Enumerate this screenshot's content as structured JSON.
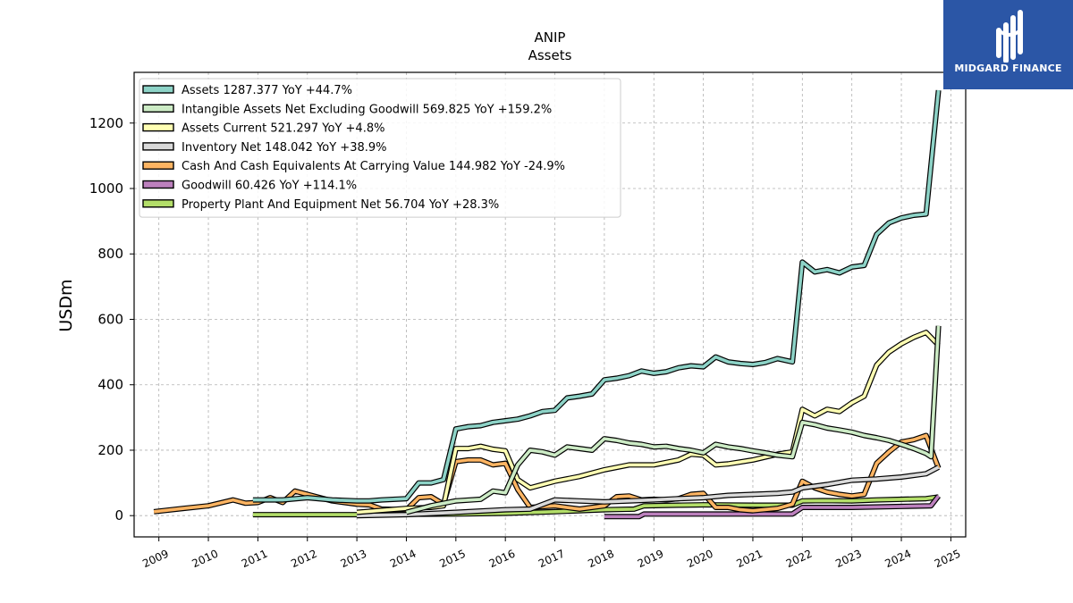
{
  "chart_data": {
    "type": "line",
    "title": "ANIP",
    "subtitle": "Assets",
    "ylabel": "USDm",
    "xlabel": "",
    "xlim": [
      2008.5,
      2025.3
    ],
    "ylim": [
      -65,
      1355
    ],
    "yticks": [
      0,
      200,
      400,
      600,
      800,
      1000,
      1200
    ],
    "xticks": [
      2009,
      2010,
      2011,
      2012,
      2013,
      2014,
      2015,
      2016,
      2017,
      2018,
      2019,
      2020,
      2021,
      2022,
      2023,
      2024,
      2025
    ],
    "grid": true,
    "legend_position": "upper-left",
    "series": [
      {
        "name": "Property Plant And Equipment Net",
        "legend": "Property Plant And Equipment Net  56.704 YoY +28.3%",
        "color": "#b3de69",
        "points": [
          [
            2010.9,
            3
          ],
          [
            2012,
            3
          ],
          [
            2013,
            3
          ],
          [
            2014,
            4
          ],
          [
            2015,
            5
          ],
          [
            2016,
            7
          ],
          [
            2017,
            12
          ],
          [
            2018,
            18
          ],
          [
            2018.6,
            20
          ],
          [
            2018.8,
            30
          ],
          [
            2019.5,
            32
          ],
          [
            2020,
            33
          ],
          [
            2021,
            32
          ],
          [
            2021.8,
            32
          ],
          [
            2022,
            45
          ],
          [
            2022.4,
            46
          ],
          [
            2023,
            45
          ],
          [
            2023.5,
            48
          ],
          [
            2024,
            50
          ],
          [
            2024.5,
            52
          ],
          [
            2024.75,
            57
          ]
        ]
      },
      {
        "name": "Goodwill",
        "legend": "Goodwill  60.426 YoY +114.1%",
        "color": "#bc80bd",
        "points": [
          [
            2018,
            -3
          ],
          [
            2018.7,
            -3
          ],
          [
            2018.8,
            5
          ],
          [
            2020,
            5
          ],
          [
            2021,
            5
          ],
          [
            2021.8,
            5
          ],
          [
            2022,
            25
          ],
          [
            2023,
            25
          ],
          [
            2024,
            28
          ],
          [
            2024.6,
            30
          ],
          [
            2024.75,
            60
          ]
        ]
      },
      {
        "name": "Cash And Cash Equivalents At Carrying Value",
        "legend": "Cash And Cash Equivalents At Carrying Value  144.982 YoY -24.9%",
        "color": "#fdb462",
        "points": [
          [
            2008.9,
            12
          ],
          [
            2009.5,
            22
          ],
          [
            2010,
            30
          ],
          [
            2010.5,
            48
          ],
          [
            2010.75,
            38
          ],
          [
            2011,
            40
          ],
          [
            2011.25,
            55
          ],
          [
            2011.5,
            40
          ],
          [
            2011.75,
            75
          ],
          [
            2012,
            65
          ],
          [
            2012.5,
            45
          ],
          [
            2013,
            35
          ],
          [
            2013.25,
            33
          ],
          [
            2013.5,
            20
          ],
          [
            2014,
            18
          ],
          [
            2014.25,
            55
          ],
          [
            2014.5,
            58
          ],
          [
            2014.75,
            35
          ],
          [
            2015,
            165
          ],
          [
            2015.25,
            170
          ],
          [
            2015.5,
            170
          ],
          [
            2015.75,
            155
          ],
          [
            2016,
            160
          ],
          [
            2016.25,
            80
          ],
          [
            2016.5,
            25
          ],
          [
            2017,
            30
          ],
          [
            2017.5,
            20
          ],
          [
            2018,
            30
          ],
          [
            2018.25,
            58
          ],
          [
            2018.5,
            60
          ],
          [
            2018.75,
            48
          ],
          [
            2019,
            50
          ],
          [
            2019.25,
            48
          ],
          [
            2019.5,
            52
          ],
          [
            2019.75,
            65
          ],
          [
            2020,
            68
          ],
          [
            2020.25,
            25
          ],
          [
            2020.5,
            25
          ],
          [
            2020.75,
            18
          ],
          [
            2021,
            15
          ],
          [
            2021.5,
            22
          ],
          [
            2021.8,
            35
          ],
          [
            2022,
            105
          ],
          [
            2022.25,
            85
          ],
          [
            2022.5,
            72
          ],
          [
            2022.75,
            65
          ],
          [
            2023,
            60
          ],
          [
            2023.25,
            65
          ],
          [
            2023.5,
            160
          ],
          [
            2023.75,
            195
          ],
          [
            2024,
            225
          ],
          [
            2024.25,
            232
          ],
          [
            2024.5,
            245
          ],
          [
            2024.75,
            145
          ]
        ]
      },
      {
        "name": "Inventory Net",
        "legend": "Inventory Net  148.042 YoY +38.9%",
        "color": "#d9d9d9",
        "points": [
          [
            2013,
            0
          ],
          [
            2014,
            3
          ],
          [
            2015,
            10
          ],
          [
            2016,
            18
          ],
          [
            2016.5,
            20
          ],
          [
            2017,
            48
          ],
          [
            2017.5,
            45
          ],
          [
            2018,
            42
          ],
          [
            2018.5,
            45
          ],
          [
            2019,
            48
          ],
          [
            2019.5,
            52
          ],
          [
            2020,
            55
          ],
          [
            2020.5,
            62
          ],
          [
            2021,
            65
          ],
          [
            2021.5,
            68
          ],
          [
            2021.8,
            72
          ],
          [
            2022,
            85
          ],
          [
            2022.5,
            95
          ],
          [
            2023,
            108
          ],
          [
            2023.5,
            112
          ],
          [
            2024,
            118
          ],
          [
            2024.5,
            128
          ],
          [
            2024.75,
            148
          ]
        ]
      },
      {
        "name": "Assets Current",
        "legend": "Assets Current  521.297 YoY +4.8%",
        "color": "#ffffb3",
        "points": [
          [
            2013,
            10
          ],
          [
            2014,
            22
          ],
          [
            2014.5,
            25
          ],
          [
            2014.75,
            30
          ],
          [
            2015,
            205
          ],
          [
            2015.25,
            205
          ],
          [
            2015.5,
            212
          ],
          [
            2015.75,
            203
          ],
          [
            2016,
            198
          ],
          [
            2016.25,
            110
          ],
          [
            2016.5,
            85
          ],
          [
            2017,
            105
          ],
          [
            2017.5,
            120
          ],
          [
            2018,
            140
          ],
          [
            2018.5,
            155
          ],
          [
            2019,
            155
          ],
          [
            2019.5,
            170
          ],
          [
            2019.75,
            188
          ],
          [
            2020,
            185
          ],
          [
            2020.25,
            155
          ],
          [
            2020.5,
            158
          ],
          [
            2021,
            170
          ],
          [
            2021.5,
            188
          ],
          [
            2021.8,
            195
          ],
          [
            2022,
            325
          ],
          [
            2022.25,
            305
          ],
          [
            2022.5,
            325
          ],
          [
            2022.75,
            318
          ],
          [
            2023,
            345
          ],
          [
            2023.25,
            365
          ],
          [
            2023.5,
            460
          ],
          [
            2023.75,
            500
          ],
          [
            2024,
            525
          ],
          [
            2024.25,
            545
          ],
          [
            2024.5,
            560
          ],
          [
            2024.75,
            521
          ]
        ]
      },
      {
        "name": "Intangible Assets Net Excluding Goodwill",
        "legend": "Intangible Assets Net Excluding Goodwill  569.825 YoY +159.2%",
        "color": "#ccebc5",
        "points": [
          [
            2014,
            10
          ],
          [
            2014.5,
            30
          ],
          [
            2015,
            45
          ],
          [
            2015.5,
            50
          ],
          [
            2015.75,
            75
          ],
          [
            2016,
            70
          ],
          [
            2016.25,
            155
          ],
          [
            2016.5,
            200
          ],
          [
            2016.75,
            195
          ],
          [
            2017,
            185
          ],
          [
            2017.25,
            210
          ],
          [
            2017.5,
            205
          ],
          [
            2017.75,
            200
          ],
          [
            2018,
            235
          ],
          [
            2018.25,
            230
          ],
          [
            2018.5,
            222
          ],
          [
            2018.75,
            218
          ],
          [
            2019,
            210
          ],
          [
            2019.25,
            212
          ],
          [
            2019.5,
            205
          ],
          [
            2019.75,
            200
          ],
          [
            2020,
            192
          ],
          [
            2020.25,
            218
          ],
          [
            2020.5,
            210
          ],
          [
            2020.75,
            205
          ],
          [
            2021,
            198
          ],
          [
            2021.25,
            192
          ],
          [
            2021.5,
            185
          ],
          [
            2021.8,
            180
          ],
          [
            2022,
            285
          ],
          [
            2022.25,
            278
          ],
          [
            2022.5,
            268
          ],
          [
            2022.75,
            262
          ],
          [
            2023,
            255
          ],
          [
            2023.25,
            245
          ],
          [
            2023.5,
            238
          ],
          [
            2023.75,
            230
          ],
          [
            2024,
            218
          ],
          [
            2024.25,
            205
          ],
          [
            2024.5,
            190
          ],
          [
            2024.6,
            180
          ],
          [
            2024.75,
            580
          ]
        ]
      },
      {
        "name": "Assets",
        "legend": "Assets  1287.377 YoY +44.7%",
        "color": "#8dd3c7",
        "points": [
          [
            2010.9,
            48
          ],
          [
            2011.5,
            48
          ],
          [
            2012,
            55
          ],
          [
            2012.5,
            48
          ],
          [
            2013,
            45
          ],
          [
            2013.25,
            45
          ],
          [
            2013.5,
            48
          ],
          [
            2014,
            52
          ],
          [
            2014.25,
            100
          ],
          [
            2014.5,
            100
          ],
          [
            2014.75,
            110
          ],
          [
            2015,
            265
          ],
          [
            2015.25,
            272
          ],
          [
            2015.5,
            275
          ],
          [
            2015.75,
            285
          ],
          [
            2016,
            290
          ],
          [
            2016.25,
            295
          ],
          [
            2016.5,
            305
          ],
          [
            2016.75,
            318
          ],
          [
            2017,
            322
          ],
          [
            2017.25,
            360
          ],
          [
            2017.5,
            365
          ],
          [
            2017.75,
            372
          ],
          [
            2018,
            415
          ],
          [
            2018.25,
            420
          ],
          [
            2018.5,
            428
          ],
          [
            2018.75,
            442
          ],
          [
            2019,
            435
          ],
          [
            2019.25,
            440
          ],
          [
            2019.5,
            452
          ],
          [
            2019.75,
            458
          ],
          [
            2020,
            455
          ],
          [
            2020.25,
            485
          ],
          [
            2020.5,
            470
          ],
          [
            2020.75,
            465
          ],
          [
            2021,
            462
          ],
          [
            2021.25,
            468
          ],
          [
            2021.5,
            480
          ],
          [
            2021.8,
            470
          ],
          [
            2022,
            775
          ],
          [
            2022.25,
            745
          ],
          [
            2022.5,
            752
          ],
          [
            2022.75,
            742
          ],
          [
            2023,
            760
          ],
          [
            2023.25,
            765
          ],
          [
            2023.5,
            860
          ],
          [
            2023.75,
            895
          ],
          [
            2024,
            910
          ],
          [
            2024.25,
            918
          ],
          [
            2024.5,
            922
          ],
          [
            2024.75,
            1300
          ]
        ]
      }
    ]
  }
}
